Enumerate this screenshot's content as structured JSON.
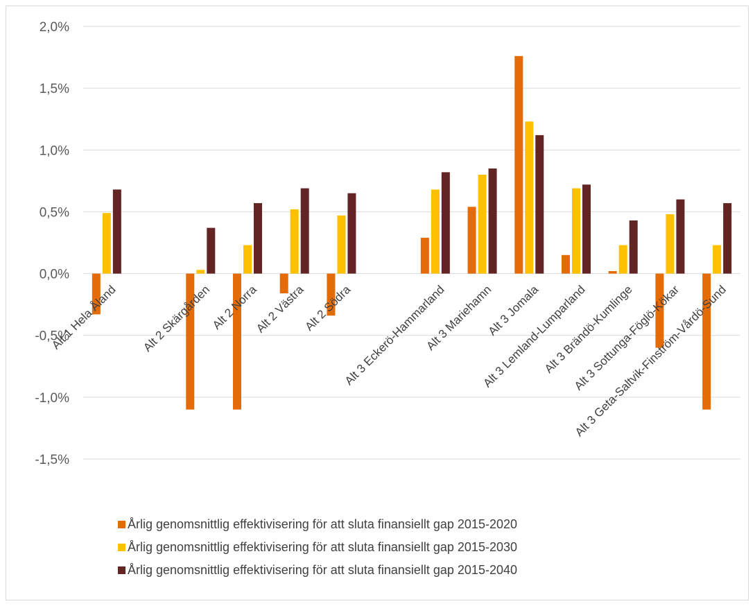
{
  "chart_data": {
    "type": "bar",
    "title": "",
    "xlabel": "",
    "ylabel": "",
    "ylim": [
      -1.5,
      2.0
    ],
    "yticks": [
      "2,0%",
      "1,5%",
      "1,0%",
      "0,5%",
      "0,0%",
      "-0,5%",
      "-1,0%",
      "-1,5%"
    ],
    "ytick_values": [
      2.0,
      1.5,
      1.0,
      0.5,
      0.0,
      -0.5,
      -1.0,
      -1.5
    ],
    "grid": true,
    "legend_position": "bottom",
    "categories": [
      "Alt 1 Hela Åland",
      "",
      "Alt 2 Skärgården",
      "Alt 2 Norra",
      "Alt 2 Västra",
      "Alt 2 Södra",
      "",
      "Alt 3 Eckerö-Hammarland",
      "Alt 3 Mariehamn",
      "Alt 3 Jomala",
      "Alt 3 Lemland-Lumparland",
      "Alt 3 Brändö-Kumlinge",
      "Alt 3 Sottunga-Föglö-Kökar",
      "Alt 3 Geta-Saltvik-Finström-Vårdö-Sund"
    ],
    "series": [
      {
        "name": "Årlig genomsnittlig effektivisering för att sluta finansiellt gap 2015-2020",
        "color": "#E36C09",
        "values": [
          -0.33,
          null,
          -1.1,
          -1.1,
          -0.16,
          -0.34,
          null,
          0.29,
          0.54,
          1.76,
          0.15,
          0.02,
          -0.6,
          -1.1
        ]
      },
      {
        "name": "Årlig genomsnittlig effektivisering för att sluta finansiellt gap 2015-2030",
        "color": "#FFC000",
        "values": [
          0.49,
          null,
          0.03,
          0.23,
          0.52,
          0.47,
          null,
          0.68,
          0.8,
          1.23,
          0.69,
          0.23,
          0.48,
          0.23
        ]
      },
      {
        "name": "Årlig genomsnittlig effektivisering för att sluta finansiellt gap 2015-2040",
        "color": "#632523",
        "values": [
          0.68,
          null,
          0.37,
          0.57,
          0.69,
          0.65,
          null,
          0.82,
          0.85,
          1.12,
          0.72,
          0.43,
          0.6,
          0.57
        ]
      }
    ]
  }
}
